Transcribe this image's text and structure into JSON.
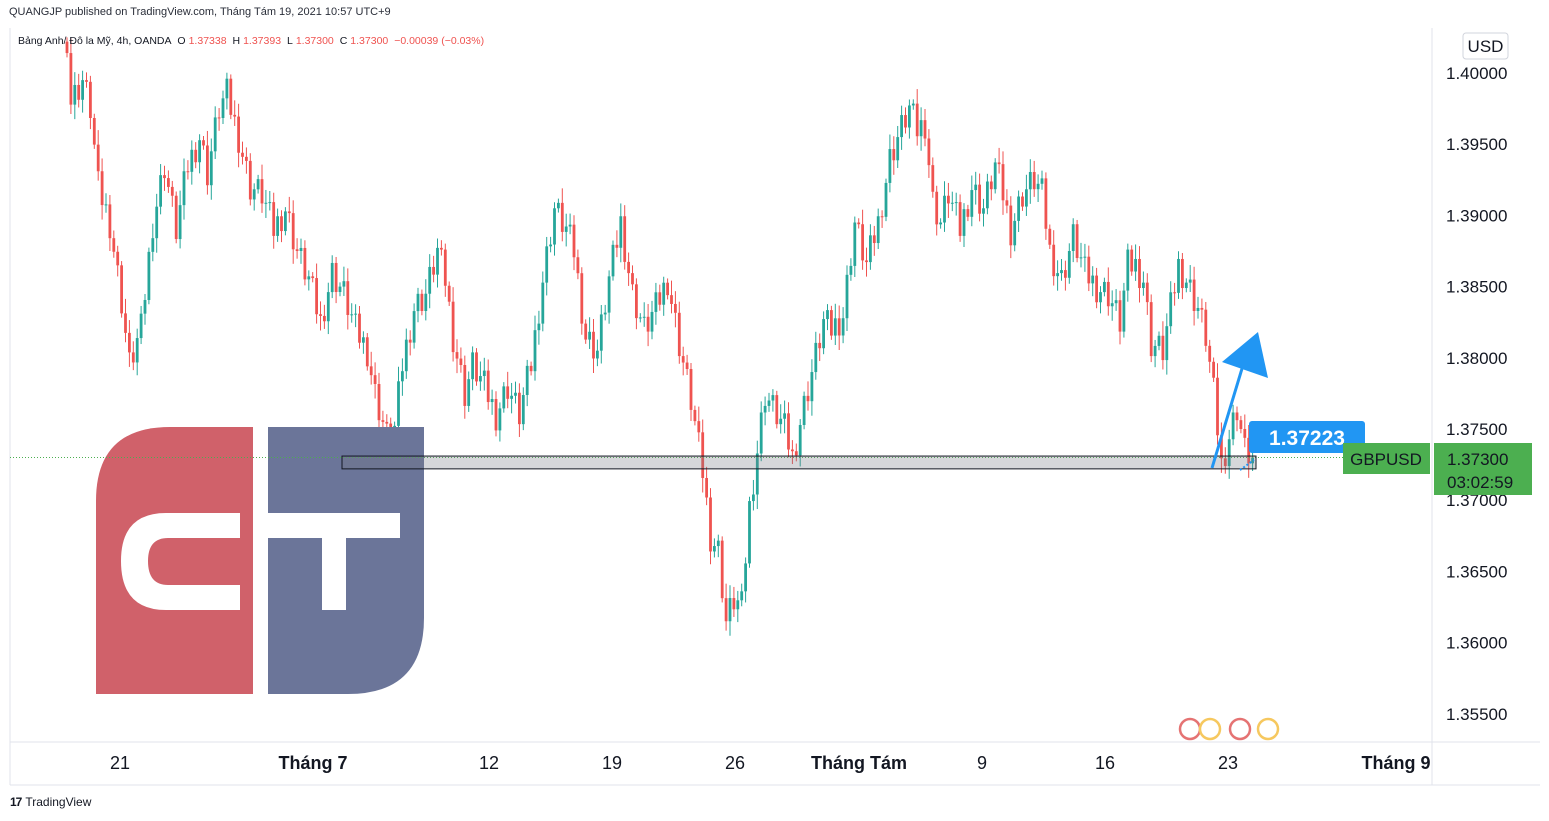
{
  "header": {
    "published": "QUANGJP published on TradingView.com, Tháng Tám 19, 2021 10:57 UTC+9",
    "symbol_info": "Bảng Anh/ Đô la Mỹ, 4h, OANDA",
    "o_label": "O",
    "o_value": "1.37338",
    "h_label": "H",
    "h_value": "1.37393",
    "l_label": "L",
    "l_value": "1.37300",
    "c_label": "C",
    "c_value": "1.37300",
    "change": "−0.00039 (−0.03%)"
  },
  "currency": "USD",
  "price_tag": {
    "symbol": "GBPUSD",
    "price": "1.37300",
    "countdown": "03:02:59"
  },
  "annotation": {
    "label": "1.37223"
  },
  "footer": {
    "brand": "TradingView",
    "mark": "17"
  },
  "colors": {
    "up": "#26a69a",
    "down": "#ef5350",
    "accent": "#2196f3",
    "tag": "#4caf50",
    "logo_red": "#d0616a",
    "logo_blue": "#6b7599"
  },
  "chart_data": {
    "type": "candlestick",
    "symbol": "GBPUSD",
    "interval": "4h",
    "ylim": [
      1.3525,
      1.4045
    ],
    "y_ticks": [
      "1.40000",
      "1.39500",
      "1.39000",
      "1.38500",
      "1.38000",
      "1.37500",
      "1.37000",
      "1.36500",
      "1.36000",
      "1.35500"
    ],
    "x_ticks": [
      {
        "label": "21",
        "bold": false
      },
      {
        "label": "Tháng 7",
        "bold": true
      },
      {
        "label": "12",
        "bold": false
      },
      {
        "label": "19",
        "bold": false
      },
      {
        "label": "26",
        "bold": false
      },
      {
        "label": "Tháng Tám",
        "bold": true
      },
      {
        "label": "9",
        "bold": false
      },
      {
        "label": "16",
        "bold": false
      },
      {
        "label": "23",
        "bold": false
      },
      {
        "label": "Tháng 9",
        "bold": true
      }
    ],
    "last_close": 1.373,
    "support_zone": [
      1.3722,
      1.3731
    ],
    "target_level": 1.37223,
    "anchors": [
      [
        0,
        1.4025
      ],
      [
        1,
        1.398
      ],
      [
        4,
        1.3995
      ],
      [
        6,
        1.3975
      ],
      [
        8,
        1.392
      ],
      [
        11,
        1.3895
      ],
      [
        14,
        1.384
      ],
      [
        16,
        1.3795
      ],
      [
        19,
        1.382
      ],
      [
        22,
        1.3895
      ],
      [
        25,
        1.3935
      ],
      [
        28,
        1.389
      ],
      [
        31,
        1.3935
      ],
      [
        34,
        1.3955
      ],
      [
        36,
        1.393
      ],
      [
        39,
        1.3975
      ],
      [
        41,
        1.3985
      ],
      [
        44,
        1.3955
      ],
      [
        47,
        1.392
      ],
      [
        50,
        1.3915
      ],
      [
        53,
        1.389
      ],
      [
        56,
        1.3905
      ],
      [
        59,
        1.3875
      ],
      [
        62,
        1.3855
      ],
      [
        65,
        1.3825
      ],
      [
        68,
        1.386
      ],
      [
        71,
        1.3845
      ],
      [
        74,
        1.382
      ],
      [
        77,
        1.3805
      ],
      [
        79,
        1.3775
      ],
      [
        82,
        1.3745
      ],
      [
        84,
        1.375
      ],
      [
        86,
        1.3795
      ],
      [
        89,
        1.3835
      ],
      [
        92,
        1.3845
      ],
      [
        95,
        1.3875
      ],
      [
        97,
        1.3855
      ],
      [
        99,
        1.3815
      ],
      [
        102,
        1.3775
      ],
      [
        104,
        1.3795
      ],
      [
        107,
        1.378
      ],
      [
        110,
        1.376
      ],
      [
        113,
        1.378
      ],
      [
        116,
        1.376
      ],
      [
        119,
        1.3795
      ],
      [
        122,
        1.3855
      ],
      [
        125,
        1.3905
      ],
      [
        128,
        1.389
      ],
      [
        130,
        1.3875
      ],
      [
        133,
        1.3815
      ],
      [
        136,
        1.3805
      ],
      [
        139,
        1.3855
      ],
      [
        142,
        1.3895
      ],
      [
        145,
        1.3845
      ],
      [
        148,
        1.382
      ],
      [
        151,
        1.3835
      ],
      [
        154,
        1.3855
      ],
      [
        157,
        1.381
      ],
      [
        160,
        1.377
      ],
      [
        163,
        1.372
      ],
      [
        165,
        1.3675
      ],
      [
        167,
        1.3665
      ],
      [
        169,
        1.3615
      ],
      [
        171,
        1.363
      ],
      [
        173,
        1.3625
      ],
      [
        175,
        1.3695
      ],
      [
        177,
        1.3735
      ],
      [
        179,
        1.3775
      ],
      [
        181,
        1.3765
      ],
      [
        184,
        1.375
      ],
      [
        186,
        1.373
      ],
      [
        188,
        1.3755
      ],
      [
        191,
        1.379
      ],
      [
        194,
        1.3825
      ],
      [
        196,
        1.382
      ],
      [
        199,
        1.383
      ],
      [
        202,
        1.3895
      ],
      [
        205,
        1.3865
      ],
      [
        208,
        1.3895
      ],
      [
        211,
        1.394
      ],
      [
        213,
        1.3955
      ],
      [
        216,
        1.3975
      ],
      [
        218,
        1.396
      ],
      [
        220,
        1.3965
      ],
      [
        222,
        1.391
      ],
      [
        224,
        1.3895
      ],
      [
        226,
        1.3915
      ],
      [
        229,
        1.389
      ],
      [
        232,
        1.392
      ],
      [
        235,
        1.3905
      ],
      [
        238,
        1.3935
      ],
      [
        240,
        1.3915
      ],
      [
        242,
        1.389
      ],
      [
        245,
        1.3915
      ],
      [
        248,
        1.3925
      ],
      [
        250,
        1.3915
      ],
      [
        252,
        1.3875
      ],
      [
        255,
        1.3855
      ],
      [
        258,
        1.3885
      ],
      [
        261,
        1.386
      ],
      [
        264,
        1.385
      ],
      [
        267,
        1.3845
      ],
      [
        270,
        1.3825
      ],
      [
        272,
        1.3865
      ],
      [
        274,
        1.3865
      ],
      [
        276,
        1.3855
      ],
      [
        278,
        1.381
      ],
      [
        281,
        1.3805
      ],
      [
        283,
        1.3835
      ],
      [
        285,
        1.3865
      ],
      [
        287,
        1.3855
      ],
      [
        290,
        1.3835
      ],
      [
        292,
        1.3815
      ],
      [
        294,
        1.3775
      ],
      [
        296,
        1.3725
      ],
      [
        298,
        1.3745
      ],
      [
        300,
        1.3765
      ],
      [
        302,
        1.3735
      ],
      [
        304,
        1.373
      ]
    ]
  }
}
